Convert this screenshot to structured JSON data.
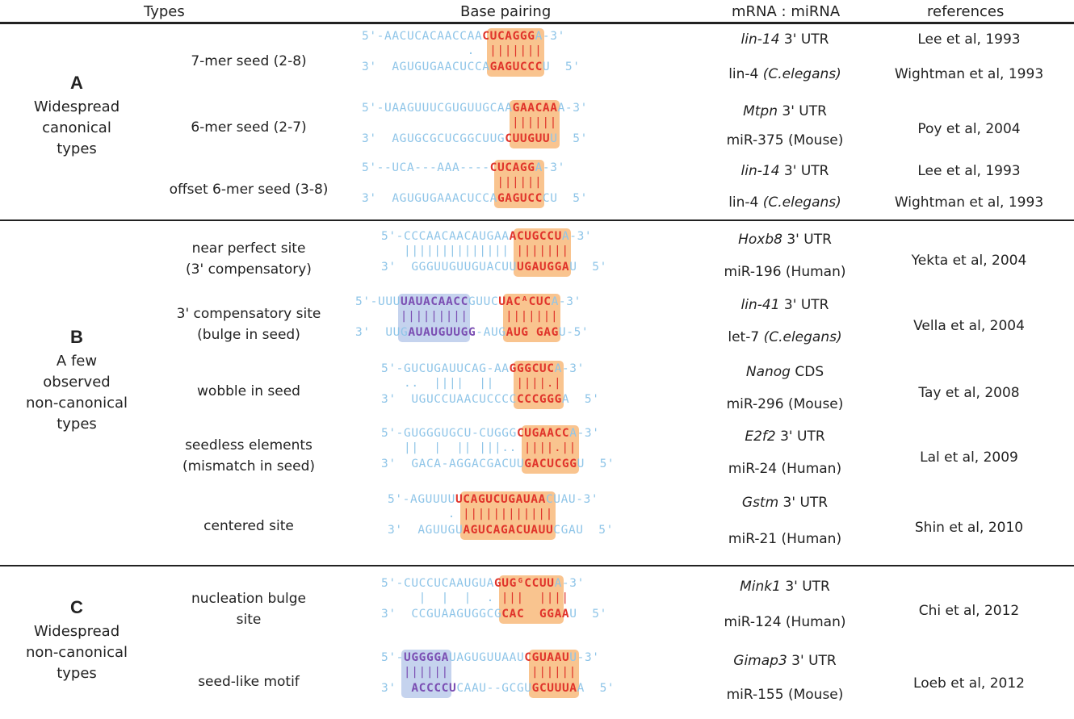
{
  "headers": {
    "types": "Types",
    "base_pairing": "Base pairing",
    "mrna_mirna": "mRNA : miRNA",
    "references": "references"
  },
  "groups": [
    {
      "letter": "A",
      "desc": [
        "Widespread",
        "canonical",
        "types"
      ]
    },
    {
      "letter": "B",
      "desc": [
        "A few",
        "observed",
        "non-canonical",
        "types"
      ]
    },
    {
      "letter": "C",
      "desc": [
        "Widespread",
        "non-canonical",
        "types"
      ]
    }
  ],
  "rows": [
    {
      "type": [
        "7-mer seed (2-8)"
      ],
      "mrna_gene": "lin-14",
      "mrna_rest": " 3' UTR",
      "mirna": "lin-4",
      "mirna_species": " (C.elegans)",
      "ref": [
        "Lee et al, 1993",
        "Wightman et al, 1993"
      ],
      "top": "5'-AACUCACAACCAA",
      "top_hl": "CUCAGGG",
      "top_end": "A-3'",
      "mid": "              .",
      "mid_hl": "|||||||",
      "bot": "3'  AGUGUGAACUCCA",
      "bot_hl": "GAGUCCC",
      "bot_end": "U  5'"
    },
    {
      "type": [
        "6-mer seed (2-7)"
      ],
      "mrna_gene": "Mtpn",
      "mrna_rest": " 3' UTR",
      "mirna": "miR-375 (Mouse)",
      "mirna_species": "",
      "ref": [
        "Poy et al, 2004"
      ],
      "top": "5'-UAAGUUUCGUGUUGCAA",
      "top_hl": "GAACAA",
      "top_end": "A-3'",
      "mid": "",
      "mid_hl": "||||||",
      "bot": "3'  AGUGCGCUCGGCUUG",
      "bot_hl": "CUUGUU",
      "bot_end": "U  5'"
    },
    {
      "type": [
        "offset 6-mer seed (3-8)"
      ],
      "mrna_gene": "lin-14",
      "mrna_rest": " 3' UTR",
      "mirna": "lin-4",
      "mirna_species": " (C.elegans)",
      "ref": [
        "Lee et al, 1993",
        "Wightman et al, 1993"
      ],
      "top": "5'--UCA---AAA----",
      "top_hl": "CUCAGG",
      "top_end": "A-3'",
      "mid": "",
      "mid_hl": "||||||",
      "bot": "3'  AGUGUGAAACUCCA",
      "bot_hl": "GAGUCC",
      "bot_end": "CU  5'"
    },
    {
      "type": [
        "near perfect site",
        "(3' compensatory)"
      ],
      "mrna_gene": "Hoxb8",
      "mrna_rest": " 3' UTR",
      "mirna": "miR-196 (Human)",
      "mirna_species": "",
      "ref": [
        "Yekta et al, 2004"
      ],
      "top": "5'-CCCAACAACAUGAA",
      "top_hl": "ACUGCCU",
      "top_end": "A-3'",
      "mid": "   ||||||||||||||",
      "mid_hl": "|||||||",
      "bot": "3'  GGGUUGUUGUACUU",
      "bot_hl": "UGAUGGA",
      "bot_end": "U  5'"
    },
    {
      "type": [
        "3' compensatory site",
        "(bulge in seed)"
      ],
      "mrna_gene": "lin-41",
      "mrna_rest": " 3' UTR",
      "mirna": "let-7",
      "mirna_species": " (C.elegans)",
      "ref": [
        "Vella et al, 2004"
      ],
      "top": "5'-UUU",
      "top_purple": "UAUACAACC",
      "top_mid": "GUUC",
      "top_hl": "UACᴬCUC",
      "top_end": "A-3'",
      "mid": "",
      "mid_hl": "",
      "bot": "3'  UUG",
      "bot_purple": "AUAUGUUGG",
      "bot_mid": "-AUG",
      "bot_hl": "AUG GAG",
      "bot_end": "U-5'"
    },
    {
      "type": [
        "wobble in seed"
      ],
      "mrna_gene": "Nanog",
      "mrna_rest": " CDS",
      "mirna": "miR-296 (Mouse)",
      "mirna_species": "",
      "ref": [
        "Tay et al, 2008"
      ],
      "top": "5'-GUCUGAUUCAG-AA",
      "top_hl": "GGGCUC",
      "top_end": "A-3'",
      "mid": "   ..  ||||  ||",
      "mid_hl": "||||.|",
      "bot": "3'  UGUCCUAACUCCCC",
      "bot_hl": "CCCGGG",
      "bot_end": "A  5'"
    },
    {
      "type": [
        "seedless elements",
        "(mismatch in seed)"
      ],
      "mrna_gene": "E2f2",
      "mrna_rest": " 3' UTR",
      "mirna": "miR-24 (Human)",
      "mirna_species": "",
      "ref": [
        "Lal et al, 2009"
      ],
      "top": "5'-GUGGGUGCU-CUGGG",
      "top_hl": "CUGAACC",
      "top_end": "A-3'",
      "mid": "   ||  |  || |||..",
      "mid_hl": "||||.||",
      "bot": "3'  GACA-AGGACGACUU",
      "bot_hl": "GACUCGG",
      "bot_end": "U  5'"
    },
    {
      "type": [
        "centered site"
      ],
      "mrna_gene": "Gstm",
      "mrna_rest": " 3' UTR",
      "mirna": "miR-21 (Human)",
      "mirna_species": "",
      "ref": [
        "Shin et al, 2010"
      ],
      "top": "5'-AGUUUU",
      "top_hl": "UCAGUCUGAUAA",
      "top_end": "CUAU-3'",
      "mid": "        .",
      "mid_hl": "||||||||||||",
      "bot": "3'  AGUUGU",
      "bot_hl": "AGUCAGACUAUU",
      "bot_end": "CGAU  5'"
    },
    {
      "type": [
        "nucleation bulge",
        "site"
      ],
      "mrna_gene": "Mink1",
      "mrna_rest": " 3' UTR",
      "mirna": "miR-124 (Human)",
      "mirna_species": "",
      "ref": [
        "Chi et al, 2012"
      ],
      "top": "5'-CUCCUCAAUGUA",
      "top_hl": "GUGᴳCCUU",
      "top_end": "A-3'",
      "mid": "     |  |  |  .",
      "mid_hl": "|||  ||||",
      "bot": "3'  CCGUAAGUGGCG",
      "bot_hl": "CAC  GGAA",
      "bot_end": "U  5'"
    },
    {
      "type": [
        "seed-like motif"
      ],
      "mrna_gene": "Gimap3",
      "mrna_rest": " 3' UTR",
      "mirna": "miR-155 (Mouse)",
      "mirna_species": "",
      "ref": [
        "Loeb et al, 2012"
      ],
      "top": "5'-",
      "top_purple": "UGGGGA",
      "top_mid": "UAGUGUUAAU",
      "top_hl": "CGUAAU",
      "top_end": "U-3'",
      "mid": "",
      "mid_hl": "",
      "bot": "3'  ",
      "bot_purple": "ACCCCU",
      "bot_mid": "CAAU--GCGU",
      "bot_hl": "GCUUUA",
      "bot_end": "A  5'"
    }
  ]
}
